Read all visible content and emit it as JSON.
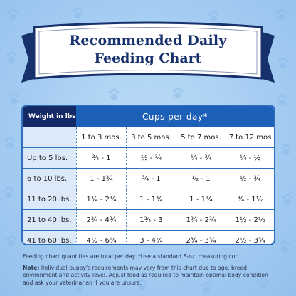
{
  "banner": {
    "title_line1": "Recommended Daily",
    "title_line2": "Feeding Chart"
  },
  "table": {
    "weight_header": "Weight in lbs.",
    "cups_header": "Cups per day*",
    "age_columns": [
      "1 to 3 mos.",
      "3 to 5 mos.",
      "5 to 7 mos.",
      "7 to 12 mos"
    ],
    "rows": [
      {
        "weight": "Up to 5 lbs.",
        "values": [
          "¾ - 1",
          "½ - ¾",
          "¼ - ¾",
          "¼ - ½"
        ]
      },
      {
        "weight": "6 to 10 lbs.",
        "values": [
          "1 - 1¾",
          "¾ - 1",
          "½ - 1",
          "½ - ¾"
        ]
      },
      {
        "weight": "11 to 20 lbs.",
        "values": [
          "1¾ - 2¾",
          "1 - 1¾",
          "1 - 1¾",
          "¾ - 1½"
        ]
      },
      {
        "weight": "21 to 40 lbs.",
        "values": [
          "2¾ - 4¾",
          "1¾ - 3",
          "1¾ - 2¾",
          "1½ - 2½"
        ]
      },
      {
        "weight": "41 to 60 lbs.",
        "values": [
          "4½ - 6¼",
          "3 - 4¼",
          "2¾ - 3¾",
          "2½ - 3¾"
        ]
      }
    ]
  },
  "footnotes": {
    "line1": "Feeding chart quantities are total per day. *Use a standard 8-oz. measuring cup.",
    "note_label": "Note:",
    "note_text": "Individual puppy's requirements may vary from this chart due to age, breed, environment and activity level. Adjust food as required to maintain optimal body condition and ask your veterinarian if you are unsure."
  },
  "colors": {
    "navy": "#142a66",
    "blue": "#1d60b8",
    "light_blue_cell": "#dce9f8",
    "background": "#a5cdf2"
  },
  "icons": [
    "paw-print-icon"
  ]
}
